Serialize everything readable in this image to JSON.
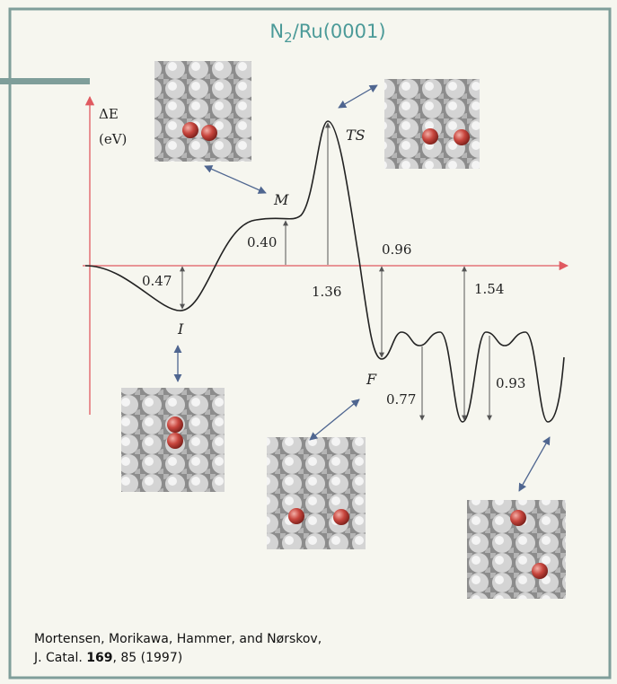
{
  "title": {
    "base": "N",
    "subscript": "2",
    "rest": "/Ru(0001)"
  },
  "axis": {
    "label": "ΔE",
    "unit": "(eV)"
  },
  "states": [
    "I",
    "M",
    "TS",
    "F"
  ],
  "energies": [
    "0.47",
    "0.40",
    "1.36",
    "0.96",
    "0.77",
    "1.54",
    "0.93"
  ],
  "citation": {
    "line1": "Mortensen, Morikawa, Hammer, and Nørskov,",
    "journal": "J. Catal.",
    "volume": "169",
    "pages": ", 85 (1997)"
  }
}
